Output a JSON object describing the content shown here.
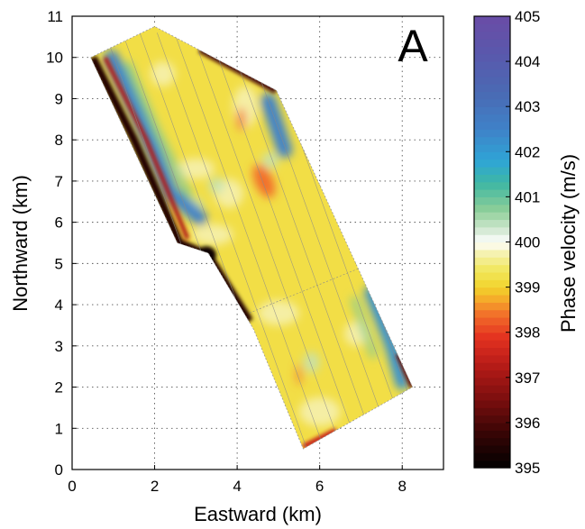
{
  "chart_data": {
    "type": "heatmap",
    "panel_label": "A",
    "xlabel": "Eastward (km)",
    "ylabel": "Northward (km)",
    "xlim": [
      0,
      9
    ],
    "ylim": [
      0,
      11
    ],
    "xticks": [
      0,
      2,
      4,
      6,
      8
    ],
    "yticks": [
      0,
      1,
      2,
      3,
      4,
      5,
      6,
      7,
      8,
      9,
      10,
      11
    ],
    "grid": true,
    "grid_style": "dotted",
    "survey_outline_km": [
      [
        0.45,
        10.0
      ],
      [
        2.0,
        10.75
      ],
      [
        3.05,
        10.2
      ],
      [
        4.95,
        9.2
      ],
      [
        8.25,
        2.0
      ],
      [
        5.6,
        0.5
      ],
      [
        4.4,
        3.4
      ],
      [
        3.3,
        5.25
      ],
      [
        2.55,
        5.5
      ]
    ],
    "colorbar": {
      "label": "Phase velocity (m/s)",
      "min": 395,
      "max": 405,
      "ticks": [
        395,
        396,
        397,
        398,
        399,
        400,
        401,
        402,
        403,
        404,
        405
      ],
      "colors": [
        {
          "value": 395.0,
          "color": "#000000"
        },
        {
          "value": 395.8,
          "color": "#3a0505"
        },
        {
          "value": 396.5,
          "color": "#7a0e0e"
        },
        {
          "value": 397.3,
          "color": "#b81c18"
        },
        {
          "value": 397.9,
          "color": "#e43220"
        },
        {
          "value": 398.4,
          "color": "#f2702a"
        },
        {
          "value": 398.75,
          "color": "#f5ad2a"
        },
        {
          "value": 399.0,
          "color": "#f2d42c"
        },
        {
          "value": 399.4,
          "color": "#f1e860"
        },
        {
          "value": 399.8,
          "color": "#f6f3bc"
        },
        {
          "value": 400.0,
          "color": "#ffffff"
        },
        {
          "value": 400.25,
          "color": "#d6ead6"
        },
        {
          "value": 400.7,
          "color": "#8fcf98"
        },
        {
          "value": 401.3,
          "color": "#3fb7a3"
        },
        {
          "value": 401.8,
          "color": "#2ea5d6"
        },
        {
          "value": 402.5,
          "color": "#3f82c8"
        },
        {
          "value": 403.3,
          "color": "#4a6ab4"
        },
        {
          "value": 404.2,
          "color": "#5a58ac"
        },
        {
          "value": 405.0,
          "color": "#6a4ca6"
        }
      ]
    },
    "features": [
      {
        "name": "western low-velocity margin",
        "velocity": 395.5
      },
      {
        "name": "western high-velocity band",
        "velocity": 402.5
      },
      {
        "name": "northeastern high-velocity band",
        "velocity": 402.5
      },
      {
        "name": "southeastern high-velocity band",
        "velocity": 402.2
      },
      {
        "name": "central orange patch",
        "velocity": 398.4
      },
      {
        "name": "survey interior",
        "velocity": 399.2
      }
    ]
  }
}
